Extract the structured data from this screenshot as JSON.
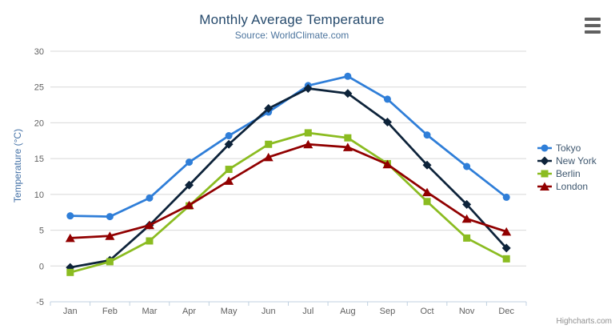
{
  "header": {
    "title": "Monthly Average Temperature",
    "subtitle": "Source: WorldClimate.com"
  },
  "export_menu": {
    "icon": "hamburger-menu-icon"
  },
  "credit": {
    "label": "Highcharts.com"
  },
  "chart_data": {
    "type": "line",
    "title": "Monthly Average Temperature",
    "subtitle": "Source: WorldClimate.com",
    "categories": [
      "Jan",
      "Feb",
      "Mar",
      "Apr",
      "May",
      "Jun",
      "Jul",
      "Aug",
      "Sep",
      "Oct",
      "Nov",
      "Dec"
    ],
    "series": [
      {
        "name": "Tokyo",
        "color": "#2f7ed8",
        "marker": "circle",
        "values": [
          7.0,
          6.9,
          9.5,
          14.5,
          18.2,
          21.5,
          25.2,
          26.5,
          23.3,
          18.3,
          13.9,
          9.6
        ]
      },
      {
        "name": "New York",
        "color": "#0d233a",
        "marker": "diamond",
        "values": [
          -0.2,
          0.8,
          5.7,
          11.3,
          17.0,
          22.0,
          24.8,
          24.1,
          20.1,
          14.1,
          8.6,
          2.5
        ]
      },
      {
        "name": "Berlin",
        "color": "#8bbc21",
        "marker": "square",
        "values": [
          -0.9,
          0.6,
          3.5,
          8.4,
          13.5,
          17.0,
          18.6,
          17.9,
          14.3,
          9.0,
          3.9,
          1.0
        ]
      },
      {
        "name": "London",
        "color": "#910000",
        "marker": "triangle",
        "values": [
          3.9,
          4.2,
          5.7,
          8.5,
          11.9,
          15.2,
          17.0,
          16.6,
          14.2,
          10.3,
          6.6,
          4.8
        ]
      }
    ],
    "xlabel": "",
    "ylabel": "Temperature (°C)",
    "ylim": [
      -5,
      30
    ],
    "ytick_step": 5,
    "grid": true,
    "legend_position": "right",
    "colors": {
      "grid_line": "#d8d8d8",
      "axis_line": "#c0d0e0",
      "axis_label": "#606060",
      "title": "#274b6d",
      "subtitle": "#4d759e",
      "y_axis_title": "#4572A7",
      "legend_text": "#3E576F"
    }
  }
}
